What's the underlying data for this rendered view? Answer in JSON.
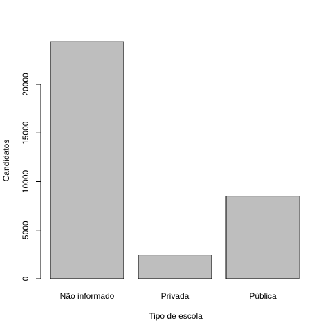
{
  "chart_data": {
    "type": "bar",
    "categories": [
      "Não informado",
      "Privada",
      "Pública"
    ],
    "values": [
      24400,
      2450,
      8500
    ],
    "title": "",
    "xlabel": "Tipo de escola",
    "ylabel": "Candidatos",
    "ylim": [
      0,
      25000
    ],
    "yticks": [
      0,
      5000,
      10000,
      15000,
      20000
    ],
    "grid": false,
    "legend": "none",
    "colors": {
      "bar_fill": "#bebebe",
      "bar_stroke": "#000000"
    }
  }
}
